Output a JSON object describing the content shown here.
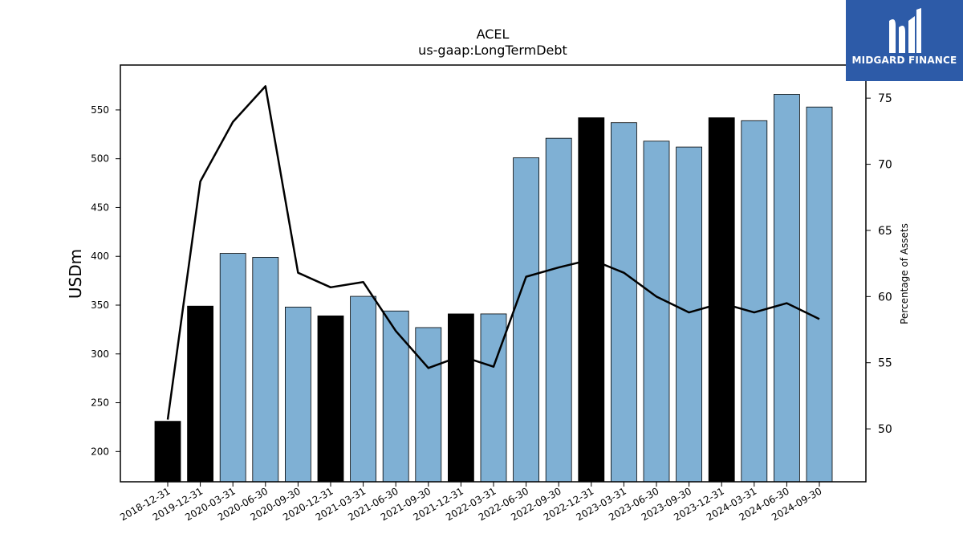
{
  "chart_data": {
    "type": "bar",
    "title": "ACEL",
    "subtitle": "us-gaap:LongTermDebt",
    "ylabel": "USDm",
    "ylabel_right": "Percentage of Assets",
    "ylim": [
      169,
      596
    ],
    "ylim_right": [
      46.0,
      77.5
    ],
    "yticks": [
      200,
      250,
      300,
      350,
      400,
      450,
      500,
      550
    ],
    "yticks_right": [
      50,
      55,
      60,
      65,
      70,
      75
    ],
    "categories": [
      "2018-12-31",
      "2019-12-31",
      "2020-03-31",
      "2020-06-30",
      "2020-09-30",
      "2020-12-31",
      "2021-03-31",
      "2021-06-30",
      "2021-09-30",
      "2021-12-31",
      "2022-03-31",
      "2022-06-30",
      "2022-09-30",
      "2022-12-31",
      "2023-03-31",
      "2023-06-30",
      "2023-09-30",
      "2023-12-31",
      "2024-03-31",
      "2024-06-30",
      "2024-09-30"
    ],
    "series": [
      {
        "kind": "bar",
        "values": [
          231,
          349,
          403,
          399,
          348,
          339,
          359,
          344,
          327,
          341,
          341,
          501,
          521,
          542,
          537,
          518,
          512,
          542,
          539,
          566,
          553
        ],
        "year_end": [
          true,
          true,
          false,
          false,
          false,
          true,
          false,
          false,
          false,
          true,
          false,
          false,
          false,
          true,
          false,
          false,
          false,
          true,
          false,
          false,
          false
        ]
      },
      {
        "kind": "line",
        "axis": "right",
        "values": [
          50.7,
          68.7,
          73.2,
          75.9,
          61.8,
          60.7,
          61.1,
          57.4,
          54.6,
          55.5,
          54.7,
          61.5,
          62.2,
          62.8,
          61.8,
          60.0,
          58.8,
          59.5,
          58.8,
          59.5,
          58.3
        ]
      }
    ],
    "colors": {
      "bar": "#7fb0d4",
      "bar_year_end": "#000000",
      "line": "#000000"
    },
    "grid": false
  },
  "logo": {
    "text": "MIDGARD FINANCE",
    "background": "#2d5ba8"
  }
}
